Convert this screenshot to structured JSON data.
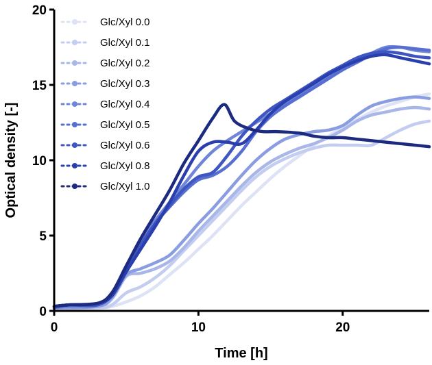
{
  "chart_data": {
    "type": "line",
    "title": "",
    "xlabel": "Time [h]",
    "ylabel": "Optical density [-]",
    "xlim": [
      0,
      26
    ],
    "ylim": [
      0,
      20
    ],
    "xticks": [
      0,
      10,
      20
    ],
    "yticks": [
      0,
      5,
      10,
      15,
      20
    ],
    "legend_position": "top-left",
    "series": [
      {
        "name": "Glc/Xyl 0.0",
        "color": "#dde3f5",
        "x": [
          0,
          3,
          4,
          5,
          6,
          7,
          8,
          9,
          10,
          11,
          12,
          13,
          14,
          15,
          16,
          17,
          18,
          19,
          20,
          21,
          22,
          23,
          24,
          25,
          26
        ],
        "y": [
          0.1,
          0.2,
          0.3,
          0.6,
          1.0,
          1.6,
          2.4,
          3.2,
          4.1,
          5.0,
          6.0,
          7.0,
          7.9,
          8.8,
          9.6,
          10.3,
          11.0,
          11.6,
          12.2,
          12.7,
          13.2,
          13.6,
          13.9,
          14.2,
          14.4
        ]
      },
      {
        "name": "Glc/Xyl 0.1",
        "color": "#c3cdef",
        "x": [
          0,
          3,
          4,
          5,
          6,
          7,
          8,
          9,
          10,
          11,
          12,
          13,
          14,
          15,
          16,
          17,
          18,
          19,
          20,
          21,
          22,
          23,
          24,
          25,
          26
        ],
        "y": [
          0.2,
          0.2,
          0.4,
          1.2,
          1.6,
          2.2,
          3.0,
          4.0,
          5.0,
          6.0,
          7.0,
          8.0,
          8.9,
          9.6,
          10.1,
          10.5,
          10.8,
          11.0,
          11.0,
          11.0,
          11.0,
          11.5,
          12.0,
          12.4,
          12.6
        ]
      },
      {
        "name": "Glc/Xyl 0.2",
        "color": "#a8b6e8",
        "x": [
          0,
          3,
          4,
          5,
          6,
          7,
          8,
          9,
          10,
          11,
          12,
          13,
          14,
          15,
          16,
          17,
          18,
          19,
          20,
          21,
          22,
          23,
          24,
          25,
          26
        ],
        "y": [
          0.2,
          0.3,
          0.8,
          2.3,
          2.5,
          2.8,
          3.3,
          4.2,
          5.3,
          6.3,
          7.3,
          8.3,
          9.2,
          9.9,
          10.4,
          10.8,
          11.1,
          11.5,
          12.0,
          12.6,
          13.0,
          13.2,
          13.4,
          13.5,
          13.4
        ]
      },
      {
        "name": "Glc/Xyl 0.3",
        "color": "#8a9de0",
        "x": [
          0,
          3,
          4,
          5,
          6,
          7,
          8,
          9,
          10,
          11,
          12,
          13,
          14,
          15,
          16,
          17,
          18,
          19,
          20,
          21,
          22,
          23,
          24,
          25,
          26
        ],
        "y": [
          0.2,
          0.3,
          0.9,
          2.4,
          2.8,
          3.2,
          3.7,
          4.7,
          5.8,
          6.8,
          7.9,
          9.0,
          10.0,
          10.8,
          11.4,
          11.7,
          11.9,
          12.0,
          12.3,
          13.0,
          13.6,
          13.9,
          14.1,
          14.2,
          14.1
        ]
      },
      {
        "name": "Glc/Xyl 0.4",
        "color": "#6f86d8",
        "x": [
          0,
          1,
          3,
          4,
          5,
          6,
          7,
          8,
          9,
          10,
          11,
          12,
          13,
          14,
          15,
          16,
          17,
          18,
          19,
          20,
          21,
          22,
          23,
          24,
          25,
          26
        ],
        "y": [
          0.2,
          0.3,
          0.4,
          1.2,
          3.0,
          4.6,
          6.0,
          7.2,
          8.4,
          9.6,
          10.6,
          11.3,
          11.9,
          12.5,
          13.1,
          13.7,
          14.3,
          14.9,
          15.5,
          16.1,
          16.6,
          17.1,
          17.5,
          17.5,
          17.3,
          17.2
        ]
      },
      {
        "name": "Glc/Xyl 0.5",
        "color": "#566fd0",
        "x": [
          0,
          1,
          3,
          4,
          5,
          6,
          7,
          8,
          9,
          10,
          11,
          12,
          13,
          14,
          15,
          16,
          17,
          18,
          19,
          20,
          21,
          22,
          23,
          24,
          25,
          26
        ],
        "y": [
          0.2,
          0.4,
          0.4,
          1.1,
          2.8,
          4.3,
          5.8,
          6.9,
          7.9,
          8.7,
          9.0,
          9.6,
          10.6,
          11.9,
          12.9,
          13.6,
          14.2,
          14.8,
          15.4,
          16.0,
          16.5,
          17.0,
          17.4,
          17.5,
          17.4,
          17.3
        ]
      },
      {
        "name": "Glc/Xyl 0.6",
        "color": "#3f55c2",
        "x": [
          0,
          1,
          3,
          4,
          5,
          6,
          7,
          8,
          9,
          10,
          11,
          12,
          13,
          14,
          15,
          16,
          17,
          18,
          19,
          20,
          21,
          22,
          23,
          24,
          25,
          26
        ],
        "y": [
          0.3,
          0.4,
          0.4,
          1.1,
          2.9,
          4.4,
          5.8,
          7.0,
          8.1,
          8.9,
          9.2,
          10.3,
          11.6,
          12.6,
          13.4,
          14.0,
          14.6,
          15.2,
          15.8,
          16.3,
          16.8,
          17.1,
          17.2,
          17.1,
          16.9,
          16.8
        ]
      },
      {
        "name": "Glc/Xyl 0.8",
        "color": "#2a3fae",
        "x": [
          0,
          1,
          3,
          4,
          5,
          6,
          7,
          8,
          9,
          10,
          11,
          12,
          13,
          14,
          15,
          16,
          17,
          18,
          19,
          20,
          21,
          22,
          23,
          24,
          25,
          26
        ],
        "y": [
          0.3,
          0.4,
          0.5,
          1.0,
          2.6,
          4.1,
          5.6,
          7.2,
          9.0,
          10.6,
          11.2,
          11.2,
          11.1,
          12.0,
          13.1,
          13.9,
          14.5,
          15.1,
          15.7,
          16.2,
          16.6,
          16.9,
          17.0,
          16.8,
          16.6,
          16.4
        ]
      },
      {
        "name": "Glc/Xyl 1.0",
        "color": "#1c2a80",
        "x": [
          0,
          1,
          3,
          4,
          5,
          6,
          7,
          8,
          9,
          10,
          11,
          11.8,
          12.5,
          13.5,
          14.5,
          15.5,
          17,
          18,
          19,
          20,
          21,
          22,
          23,
          24,
          25,
          26
        ],
        "y": [
          0.3,
          0.4,
          0.5,
          1.2,
          3.0,
          4.8,
          6.4,
          8.0,
          9.8,
          11.3,
          12.8,
          13.7,
          12.6,
          12.1,
          11.9,
          11.9,
          11.8,
          11.6,
          11.5,
          11.5,
          11.4,
          11.3,
          11.2,
          11.1,
          11.0,
          10.9
        ]
      }
    ]
  }
}
